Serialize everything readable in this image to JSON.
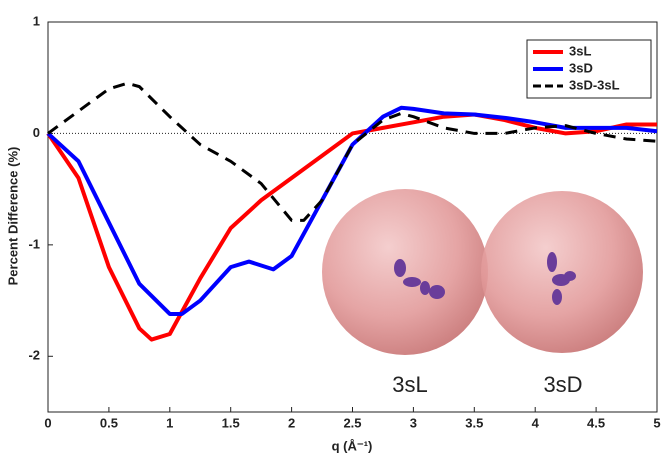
{
  "chart_data": {
    "type": "line",
    "xlabel": "q (Å⁻¹)",
    "ylabel": "Percent Difference (%)",
    "xlim": [
      0,
      5
    ],
    "ylim": [
      -2.5,
      1
    ],
    "xticks": [
      0,
      0.5,
      1,
      1.5,
      2,
      2.5,
      3,
      3.5,
      4,
      4.5,
      5
    ],
    "yticks": [
      -2,
      -1,
      0,
      1
    ],
    "hlines": [
      0
    ],
    "legend": "upper right",
    "annotations": [
      "3sL",
      "3sD"
    ],
    "series": [
      {
        "name": "3sL",
        "color": "#ff0000",
        "dash": false,
        "x": [
          0,
          0.25,
          0.5,
          0.75,
          0.85,
          1.0,
          1.25,
          1.5,
          1.75,
          2.0,
          2.25,
          2.5,
          2.75,
          3.0,
          3.25,
          3.5,
          3.75,
          4.0,
          4.25,
          4.5,
          4.75,
          5.0
        ],
        "values": [
          0,
          -0.4,
          -1.2,
          -1.75,
          -1.85,
          -1.8,
          -1.3,
          -0.85,
          -0.6,
          -0.4,
          -0.2,
          0.0,
          0.05,
          0.1,
          0.15,
          0.17,
          0.12,
          0.05,
          0.0,
          0.02,
          0.08,
          0.08
        ]
      },
      {
        "name": "3sD",
        "color": "#0000ff",
        "dash": false,
        "x": [
          0,
          0.25,
          0.5,
          0.75,
          1.0,
          1.1,
          1.25,
          1.5,
          1.65,
          1.85,
          2.0,
          2.25,
          2.5,
          2.75,
          2.9,
          3.0,
          3.25,
          3.5,
          3.75,
          4.0,
          4.25,
          4.5,
          4.75,
          5.0
        ],
        "values": [
          0,
          -0.25,
          -0.8,
          -1.35,
          -1.62,
          -1.62,
          -1.5,
          -1.2,
          -1.15,
          -1.22,
          -1.1,
          -0.6,
          -0.1,
          0.15,
          0.23,
          0.22,
          0.18,
          0.17,
          0.14,
          0.1,
          0.05,
          0.05,
          0.05,
          0.02
        ]
      },
      {
        "name": "3sD-3sL",
        "color": "#000000",
        "dash": true,
        "x": [
          0,
          0.25,
          0.5,
          0.65,
          0.75,
          1.0,
          1.25,
          1.5,
          1.75,
          2.0,
          2.1,
          2.25,
          2.5,
          2.75,
          2.9,
          3.0,
          3.25,
          3.5,
          3.75,
          4.0,
          4.25,
          4.5,
          4.75,
          5.0
        ],
        "values": [
          0,
          0.2,
          0.4,
          0.45,
          0.42,
          0.15,
          -0.1,
          -0.25,
          -0.45,
          -0.78,
          -0.78,
          -0.6,
          -0.1,
          0.12,
          0.18,
          0.15,
          0.05,
          0.0,
          0.0,
          0.05,
          0.07,
          0.0,
          -0.05,
          -0.07
        ]
      }
    ]
  }
}
